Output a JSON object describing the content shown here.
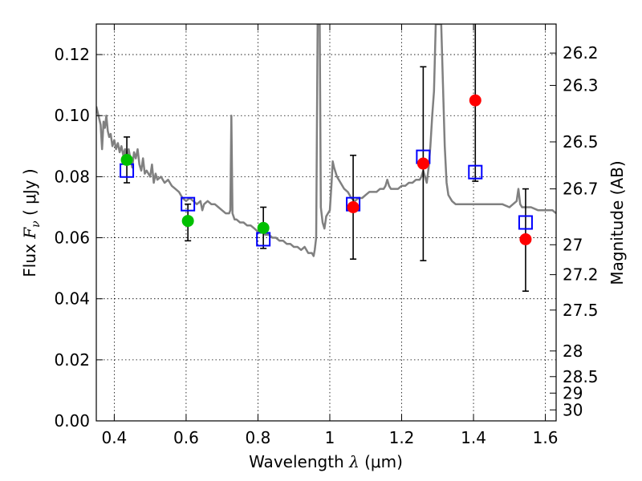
{
  "chart_data": {
    "type": "scatter",
    "xlabel": {
      "prefix": "Wavelength ",
      "symbol": "λ",
      "units": " (μm)"
    },
    "ylabel": {
      "prefix": "Flux  ",
      "symbol": "F",
      "subscript": "ν",
      "units": "  ( μJy )"
    },
    "y2label": "Magnitude (AB)",
    "xlim": [
      0.35,
      1.63
    ],
    "ylim": [
      0.0,
      0.13
    ],
    "grid": true,
    "x_ticks": [
      {
        "v": 0.4,
        "label": "0.4"
      },
      {
        "v": 0.6,
        "label": "0.6"
      },
      {
        "v": 0.8,
        "label": "0.8"
      },
      {
        "v": 1.0,
        "label": "1"
      },
      {
        "v": 1.2,
        "label": "1.2"
      },
      {
        "v": 1.4,
        "label": "1.4"
      },
      {
        "v": 1.6,
        "label": "1.6"
      }
    ],
    "y_ticks": [
      {
        "v": 0.0,
        "label": "0.00"
      },
      {
        "v": 0.02,
        "label": "0.02"
      },
      {
        "v": 0.04,
        "label": "0.04"
      },
      {
        "v": 0.06,
        "label": "0.06"
      },
      {
        "v": 0.08,
        "label": "0.08"
      },
      {
        "v": 0.1,
        "label": "0.10"
      },
      {
        "v": 0.12,
        "label": "0.12"
      }
    ],
    "mag_ticks": [
      {
        "label": "26.2",
        "flux": 0.1205
      },
      {
        "label": "26.3",
        "flux": 0.1099
      },
      {
        "label": "26.5",
        "flux": 0.0914
      },
      {
        "label": "26.7",
        "flux": 0.076
      },
      {
        "label": "27",
        "flux": 0.0577
      },
      {
        "label": "27.2",
        "flux": 0.0479
      },
      {
        "label": "27.5",
        "flux": 0.0363
      },
      {
        "label": "28",
        "flux": 0.0229
      },
      {
        "label": "28.5",
        "flux": 0.0145
      },
      {
        "label": "29",
        "flux": 0.0091
      },
      {
        "label": "30",
        "flux": 0.0036
      }
    ],
    "series": [
      {
        "name": "model-spectrum",
        "kind": "line",
        "color": "#808080",
        "points": [
          [
            0.35,
            0.103
          ],
          [
            0.356,
            0.1
          ],
          [
            0.362,
            0.097
          ],
          [
            0.366,
            0.089
          ],
          [
            0.37,
            0.098
          ],
          [
            0.374,
            0.096
          ],
          [
            0.378,
            0.1
          ],
          [
            0.382,
            0.095
          ],
          [
            0.386,
            0.093
          ],
          [
            0.39,
            0.094
          ],
          [
            0.395,
            0.09
          ],
          [
            0.4,
            0.092
          ],
          [
            0.405,
            0.089
          ],
          [
            0.41,
            0.091
          ],
          [
            0.415,
            0.088
          ],
          [
            0.42,
            0.09
          ],
          [
            0.425,
            0.087
          ],
          [
            0.43,
            0.089
          ],
          [
            0.435,
            0.084
          ],
          [
            0.44,
            0.089
          ],
          [
            0.445,
            0.086
          ],
          [
            0.45,
            0.083
          ],
          [
            0.455,
            0.088
          ],
          [
            0.46,
            0.086
          ],
          [
            0.465,
            0.089
          ],
          [
            0.47,
            0.084
          ],
          [
            0.475,
            0.082
          ],
          [
            0.48,
            0.086
          ],
          [
            0.485,
            0.081
          ],
          [
            0.49,
            0.082
          ],
          [
            0.5,
            0.08
          ],
          [
            0.505,
            0.084
          ],
          [
            0.51,
            0.078
          ],
          [
            0.515,
            0.081
          ],
          [
            0.52,
            0.079
          ],
          [
            0.53,
            0.08
          ],
          [
            0.54,
            0.078
          ],
          [
            0.55,
            0.079
          ],
          [
            0.56,
            0.077
          ],
          [
            0.57,
            0.076
          ],
          [
            0.58,
            0.075
          ],
          [
            0.59,
            0.073
          ],
          [
            0.6,
            0.072
          ],
          [
            0.61,
            0.073
          ],
          [
            0.62,
            0.072
          ],
          [
            0.63,
            0.071
          ],
          [
            0.64,
            0.072
          ],
          [
            0.645,
            0.069
          ],
          [
            0.65,
            0.071
          ],
          [
            0.66,
            0.072
          ],
          [
            0.67,
            0.071
          ],
          [
            0.68,
            0.071
          ],
          [
            0.69,
            0.07
          ],
          [
            0.7,
            0.069
          ],
          [
            0.71,
            0.068
          ],
          [
            0.72,
            0.068
          ],
          [
            0.723,
            0.069
          ],
          [
            0.726,
            0.1
          ],
          [
            0.729,
            0.068
          ],
          [
            0.735,
            0.066
          ],
          [
            0.74,
            0.066
          ],
          [
            0.75,
            0.065
          ],
          [
            0.76,
            0.065
          ],
          [
            0.77,
            0.064
          ],
          [
            0.78,
            0.064
          ],
          [
            0.79,
            0.063
          ],
          [
            0.8,
            0.062
          ],
          [
            0.81,
            0.062
          ],
          [
            0.82,
            0.061
          ],
          [
            0.83,
            0.061
          ],
          [
            0.84,
            0.06
          ],
          [
            0.85,
            0.06
          ],
          [
            0.86,
            0.059
          ],
          [
            0.87,
            0.059
          ],
          [
            0.88,
            0.058
          ],
          [
            0.89,
            0.058
          ],
          [
            0.9,
            0.057
          ],
          [
            0.91,
            0.057
          ],
          [
            0.92,
            0.056
          ],
          [
            0.93,
            0.057
          ],
          [
            0.94,
            0.055
          ],
          [
            0.95,
            0.055
          ],
          [
            0.955,
            0.054
          ],
          [
            0.958,
            0.056
          ],
          [
            0.962,
            0.06
          ],
          [
            0.966,
            0.13
          ],
          [
            0.972,
            0.13
          ],
          [
            0.975,
            0.07
          ],
          [
            0.98,
            0.065
          ],
          [
            0.985,
            0.063
          ],
          [
            0.99,
            0.067
          ],
          [
            0.995,
            0.068
          ],
          [
            1.0,
            0.069
          ],
          [
            1.005,
            0.078
          ],
          [
            1.008,
            0.085
          ],
          [
            1.012,
            0.083
          ],
          [
            1.02,
            0.08
          ],
          [
            1.03,
            0.078
          ],
          [
            1.04,
            0.076
          ],
          [
            1.05,
            0.075
          ],
          [
            1.06,
            0.073
          ],
          [
            1.07,
            0.072
          ],
          [
            1.08,
            0.073
          ],
          [
            1.09,
            0.073
          ],
          [
            1.1,
            0.074
          ],
          [
            1.11,
            0.075
          ],
          [
            1.12,
            0.075
          ],
          [
            1.13,
            0.075
          ],
          [
            1.14,
            0.076
          ],
          [
            1.15,
            0.076
          ],
          [
            1.155,
            0.077
          ],
          [
            1.16,
            0.079
          ],
          [
            1.165,
            0.077
          ],
          [
            1.17,
            0.076
          ],
          [
            1.18,
            0.076
          ],
          [
            1.19,
            0.076
          ],
          [
            1.2,
            0.077
          ],
          [
            1.21,
            0.077
          ],
          [
            1.22,
            0.078
          ],
          [
            1.23,
            0.078
          ],
          [
            1.24,
            0.079
          ],
          [
            1.25,
            0.079
          ],
          [
            1.255,
            0.08
          ],
          [
            1.26,
            0.082
          ],
          [
            1.265,
            0.08
          ],
          [
            1.27,
            0.078
          ],
          [
            1.275,
            0.083
          ],
          [
            1.28,
            0.09
          ],
          [
            1.285,
            0.1
          ],
          [
            1.29,
            0.108
          ],
          [
            1.295,
            0.13
          ],
          [
            1.31,
            0.13
          ],
          [
            1.315,
            0.11
          ],
          [
            1.32,
            0.09
          ],
          [
            1.325,
            0.078
          ],
          [
            1.33,
            0.074
          ],
          [
            1.34,
            0.072
          ],
          [
            1.35,
            0.071
          ],
          [
            1.36,
            0.071
          ],
          [
            1.37,
            0.071
          ],
          [
            1.38,
            0.071
          ],
          [
            1.39,
            0.071
          ],
          [
            1.4,
            0.071
          ],
          [
            1.42,
            0.071
          ],
          [
            1.44,
            0.071
          ],
          [
            1.46,
            0.071
          ],
          [
            1.48,
            0.071
          ],
          [
            1.5,
            0.07
          ],
          [
            1.51,
            0.071
          ],
          [
            1.52,
            0.072
          ],
          [
            1.525,
            0.076
          ],
          [
            1.53,
            0.071
          ],
          [
            1.535,
            0.07
          ],
          [
            1.54,
            0.07
          ],
          [
            1.56,
            0.07
          ],
          [
            1.58,
            0.069
          ],
          [
            1.6,
            0.069
          ],
          [
            1.62,
            0.069
          ],
          [
            1.63,
            0.068
          ]
        ]
      },
      {
        "name": "model-photometry",
        "kind": "open-square",
        "color": "#0000ff",
        "points": [
          [
            0.435,
            0.082
          ],
          [
            0.605,
            0.071
          ],
          [
            0.815,
            0.0595
          ],
          [
            1.065,
            0.071
          ],
          [
            1.26,
            0.0865
          ],
          [
            1.405,
            0.0815
          ],
          [
            1.545,
            0.065
          ]
        ]
      },
      {
        "name": "observed-flux",
        "kind": "filled-circle",
        "points": [
          {
            "x": 0.435,
            "y": 0.0855,
            "err": [
              0.078,
              0.093
            ],
            "color": "#00c000"
          },
          {
            "x": 0.605,
            "y": 0.0655,
            "err": [
              0.059,
              0.071
            ],
            "color": "#00c000"
          },
          {
            "x": 0.815,
            "y": 0.0632,
            "err": [
              0.0565,
              0.07
            ],
            "color": "#00c000"
          },
          {
            "x": 1.065,
            "y": 0.07,
            "err": [
              0.053,
              0.087
            ],
            "color": "#ff0000"
          },
          {
            "x": 1.26,
            "y": 0.0843,
            "err": [
              0.0525,
              0.116
            ],
            "color": "#ff0000"
          },
          {
            "x": 1.405,
            "y": 0.105,
            "err": [
              0.0785,
              0.13
            ],
            "color": "#ff0000"
          },
          {
            "x": 1.545,
            "y": 0.0595,
            "err": [
              0.0425,
              0.076
            ],
            "color": "#ff0000"
          }
        ]
      }
    ]
  }
}
